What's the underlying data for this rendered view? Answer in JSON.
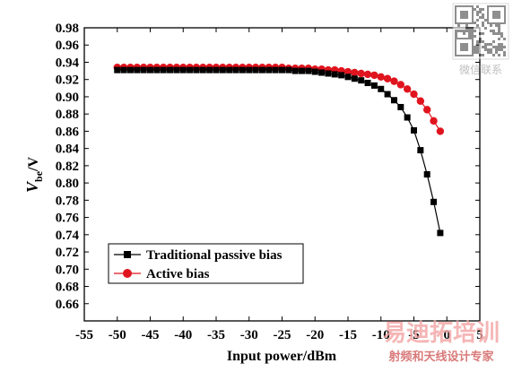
{
  "chart_data": {
    "type": "line",
    "title": "",
    "xlabel": "Input power/dBm",
    "ylabel_main": "V",
    "ylabel_sub": "be",
    "ylabel_suffix": "/V",
    "xlim": [
      -55,
      5
    ],
    "ylim": [
      0.64,
      0.98
    ],
    "xticks": [
      -55,
      -50,
      -45,
      -40,
      -35,
      -30,
      -25,
      -20,
      -15,
      -10,
      -5,
      0,
      5
    ],
    "xtick_labels": [
      "-55",
      "-50",
      "-45",
      "-40",
      "-35",
      "-30",
      "-25",
      "-20",
      "-15",
      "-10",
      "-5",
      "0",
      "5"
    ],
    "yticks": [
      0.66,
      0.68,
      0.7,
      0.72,
      0.74,
      0.76,
      0.78,
      0.8,
      0.82,
      0.84,
      0.86,
      0.88,
      0.9,
      0.92,
      0.94,
      0.96,
      0.98
    ],
    "ytick_labels": [
      "0.66",
      "0.68",
      "0.70",
      "0.72",
      "0.74",
      "0.76",
      "0.78",
      "0.80",
      "0.82",
      "0.84",
      "0.86",
      "0.88",
      "0.90",
      "0.92",
      "0.94",
      "0.96",
      "0.98"
    ],
    "grid": false,
    "legend_position": "bottom-left",
    "series": [
      {
        "name": "Traditional passive bias",
        "marker": "square",
        "color": "#000000",
        "x": [
          -50,
          -49,
          -48,
          -47,
          -46,
          -45,
          -44,
          -43,
          -42,
          -41,
          -40,
          -39,
          -38,
          -37,
          -36,
          -35,
          -34,
          -33,
          -32,
          -31,
          -30,
          -29,
          -28,
          -27,
          -26,
          -25,
          -24,
          -23,
          -22,
          -21,
          -20,
          -19,
          -18,
          -17,
          -16,
          -15,
          -14,
          -13,
          -12,
          -11,
          -10,
          -9,
          -8,
          -7,
          -6,
          -5,
          -4,
          -3,
          -2,
          -1
        ],
        "y": [
          0.931,
          0.931,
          0.931,
          0.931,
          0.931,
          0.931,
          0.931,
          0.931,
          0.931,
          0.931,
          0.931,
          0.931,
          0.931,
          0.931,
          0.931,
          0.931,
          0.931,
          0.931,
          0.931,
          0.931,
          0.931,
          0.931,
          0.931,
          0.931,
          0.931,
          0.931,
          0.931,
          0.93,
          0.93,
          0.93,
          0.929,
          0.928,
          0.927,
          0.926,
          0.925,
          0.923,
          0.921,
          0.919,
          0.916,
          0.913,
          0.909,
          0.903,
          0.896,
          0.888,
          0.876,
          0.861,
          0.838,
          0.81,
          0.778,
          0.742
        ]
      },
      {
        "name": "Active bias",
        "marker": "circle",
        "color": "#e0141e",
        "x": [
          -50,
          -49,
          -48,
          -47,
          -46,
          -45,
          -44,
          -43,
          -42,
          -41,
          -40,
          -39,
          -38,
          -37,
          -36,
          -35,
          -34,
          -33,
          -32,
          -31,
          -30,
          -29,
          -28,
          -27,
          -26,
          -25,
          -24,
          -23,
          -22,
          -21,
          -20,
          -19,
          -18,
          -17,
          -16,
          -15,
          -14,
          -13,
          -12,
          -11,
          -10,
          -9,
          -8,
          -7,
          -6,
          -5,
          -4,
          -3,
          -2,
          -1
        ],
        "y": [
          0.934,
          0.934,
          0.934,
          0.934,
          0.934,
          0.934,
          0.934,
          0.934,
          0.934,
          0.934,
          0.934,
          0.934,
          0.934,
          0.934,
          0.934,
          0.934,
          0.934,
          0.934,
          0.934,
          0.934,
          0.934,
          0.934,
          0.934,
          0.934,
          0.934,
          0.934,
          0.933,
          0.933,
          0.933,
          0.933,
          0.932,
          0.932,
          0.931,
          0.931,
          0.93,
          0.929,
          0.928,
          0.927,
          0.926,
          0.925,
          0.923,
          0.921,
          0.918,
          0.914,
          0.909,
          0.903,
          0.895,
          0.885,
          0.872,
          0.86
        ]
      }
    ]
  },
  "watermarks": {
    "qr_caption": "微信联系",
    "brand_main": "易迪拓培训",
    "brand_sub": "射频和天线设计专家"
  }
}
